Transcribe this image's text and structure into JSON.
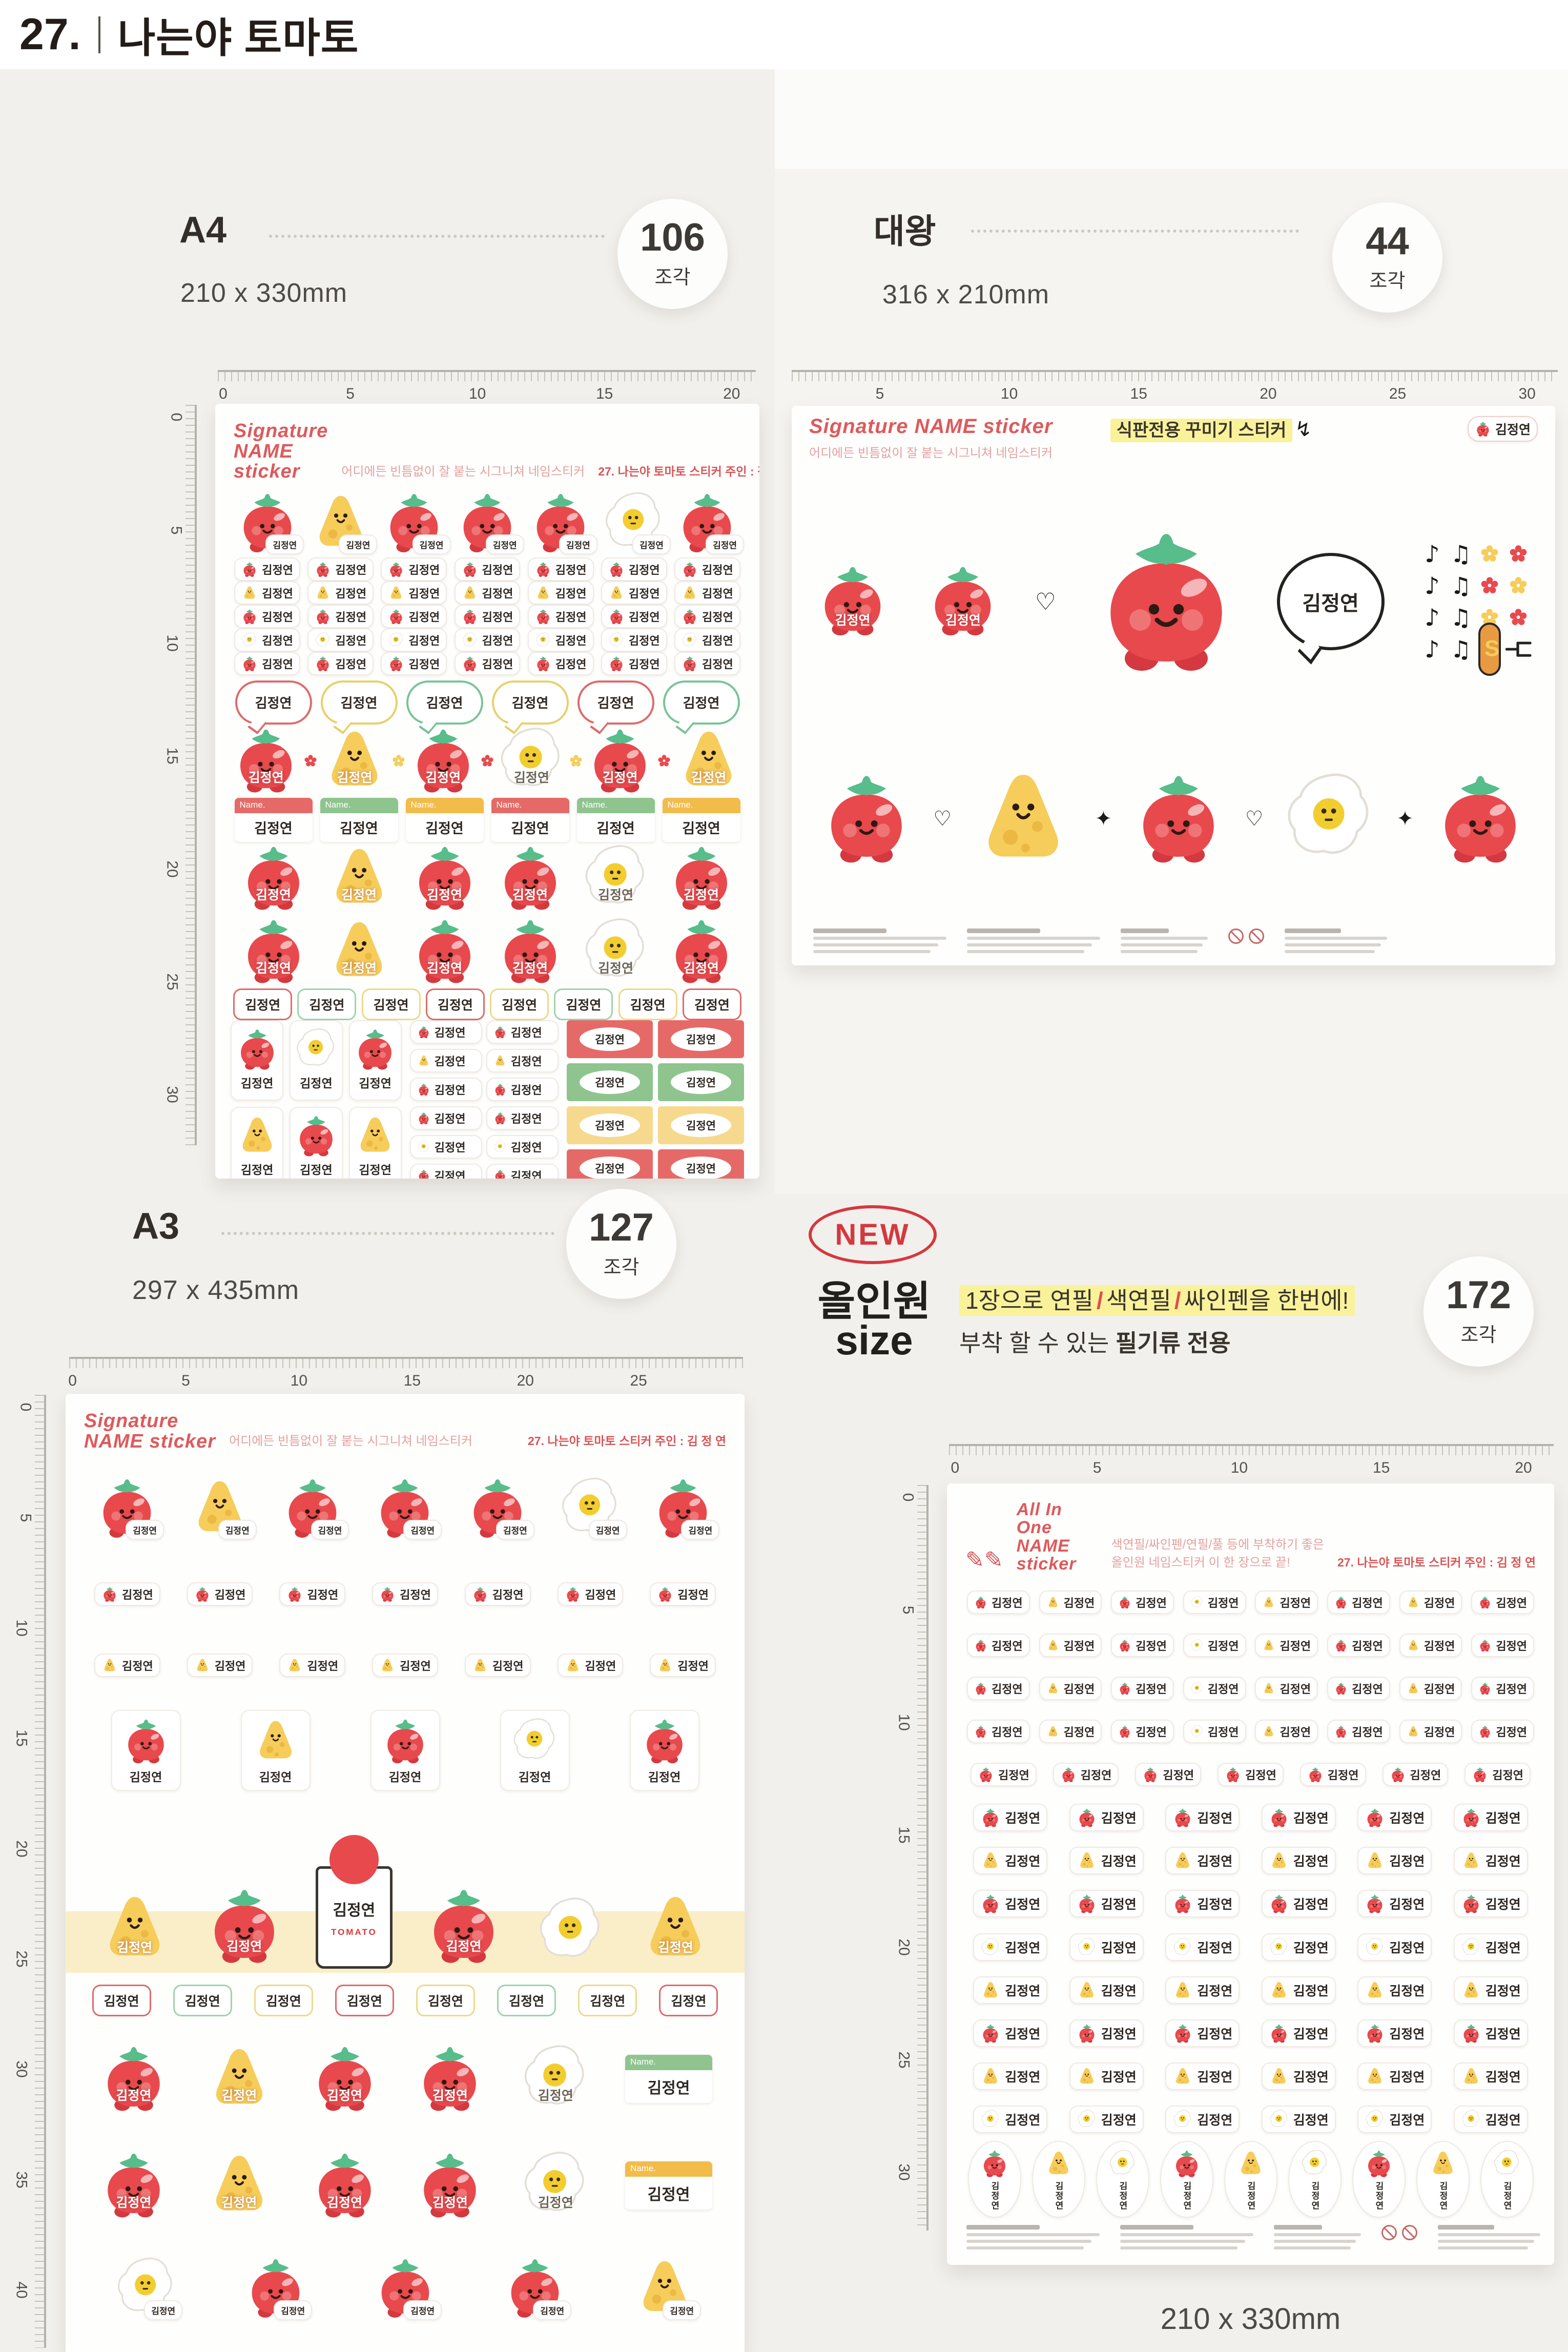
{
  "title": {
    "number": "27.",
    "text": "나는야 토마토"
  },
  "owner_name": "김정연",
  "badge_unit": "조각",
  "name_tag_label": "Name.",
  "sections": {
    "a4": {
      "size_label": "A4",
      "pieces": "106",
      "dimensions": "210 x 330mm"
    },
    "daewang": {
      "size_label": "대왕",
      "pieces": "44",
      "dimensions": "316 x 210mm"
    },
    "a3": {
      "size_label": "A3",
      "pieces": "127",
      "dimensions": "297 x 435mm"
    },
    "allinone": {
      "new_label": "NEW",
      "size_label_line1": "올인원",
      "size_label_line2": "size",
      "pieces": "172",
      "desc_highlight_parts": [
        "1장으로 연필",
        "색연필",
        "싸인펜을 한번에!"
      ],
      "desc_line2_prefix": "부착 할 수 있는 ",
      "desc_line2_bold": "필기류 전용",
      "dimensions_below": "210 x 330mm"
    }
  },
  "sheet_headers": {
    "signature": {
      "title_line1": "Signature",
      "title_line2": "NAME sticker",
      "subtitle": "어디에든 빈틈없이 잘 붙는 시그니쳐 네임스티커",
      "corner": "27. 나는야 토마토   스티커 주인 : 김 정 연"
    },
    "daewang_extra": {
      "highlight": "식판전용 꾸미기 스티커"
    },
    "allinone": {
      "title_line1": "All In One",
      "title_line2": "NAME sticker",
      "subtitle_line1": "색연필/싸인펜/연필/풀 등에 부착하기 좋은",
      "subtitle_line2": "올인원 네임스티커 이 한 장으로 끝!",
      "corner": "27. 나는야 토마토   스티커 주인 : 김 정 연"
    }
  },
  "rulers": {
    "a4_top": [
      "0",
      "5",
      "10",
      "15",
      "20"
    ],
    "a4_left": [
      "0",
      "5",
      "10",
      "15",
      "20",
      "25",
      "30"
    ],
    "daewang_top": [
      "5",
      "10",
      "15",
      "20",
      "25",
      "30"
    ],
    "a3_top": [
      "0",
      "5",
      "10",
      "15",
      "20",
      "25"
    ],
    "a3_left": [
      "0",
      "5",
      "10",
      "15",
      "20",
      "25",
      "30",
      "35",
      "40"
    ],
    "allinone_top": [
      "0",
      "5",
      "10",
      "15",
      "20"
    ],
    "allinone_left": [
      "0",
      "5",
      "10",
      "15",
      "20",
      "25",
      "30"
    ]
  },
  "colors": {
    "tomato_red": "#e8494d",
    "tomato_dark": "#d4393f",
    "leaf_green": "#56bd8b",
    "cheese_yellow": "#f6cd5a",
    "cheese_hole": "#ecb844",
    "egg_yolk": "#f2cd2f",
    "script_red": "#dd5a5c",
    "highlight_yellow": "#faf29a",
    "new_red": "#d5383e",
    "label_red": "#e56a67",
    "label_green": "#8fc48f",
    "label_yellow": "#f2bc4a",
    "page_bg": "#f2f0ec",
    "sheet_white": "#fefefd"
  },
  "sheets": {
    "a4_rows": [
      {
        "t": "sigheader"
      },
      {
        "t": "bigchars",
        "chars": [
          "tomato",
          "cheese",
          "tomato",
          "tomato",
          "tomato",
          "egg",
          "tomato"
        ]
      },
      {
        "t": "labels",
        "icons": [
          "tomato"
        ],
        "n": 7
      },
      {
        "t": "labels",
        "icons": [
          "cheese"
        ],
        "n": 7
      },
      {
        "t": "labels",
        "icons": [
          "tomato"
        ],
        "n": 7
      },
      {
        "t": "labels",
        "icons": [
          "egg"
        ],
        "n": 7
      },
      {
        "t": "labels",
        "icons": [
          "tomato"
        ],
        "n": 7
      },
      {
        "t": "bubbles",
        "colors": [
          "#dd6b6b",
          "#e8d06a",
          "#79c398",
          "#e8d06a",
          "#dd6b6b",
          "#79c398"
        ]
      },
      {
        "t": "namedchars",
        "chars": [
          "tomato",
          "cheese",
          "tomato",
          "egg",
          "tomato",
          "cheese"
        ],
        "flowers": true
      },
      {
        "t": "namebars",
        "colors": [
          "#e56a67",
          "#8fc48f",
          "#f2bc4a",
          "#e56a67",
          "#8fc48f",
          "#f2bc4a"
        ]
      },
      {
        "t": "namedchars",
        "chars": [
          "tomato",
          "cheese",
          "tomato",
          "tomato",
          "egg",
          "tomato"
        ]
      },
      {
        "t": "namedchars",
        "chars": [
          "tomato",
          "cheese",
          "tomato",
          "tomato",
          "egg",
          "tomato"
        ]
      },
      {
        "t": "outlinepills",
        "colors": [
          "#dd6b6b",
          "#9fd3ac",
          "#ecd98c",
          "#dd6b6b",
          "#ecd98c",
          "#9fd3ac",
          "#ecd98c",
          "#dd6b6b"
        ]
      },
      {
        "t": "a4bottom"
      }
    ],
    "daewang_rows": [
      {
        "t": "dwheader"
      },
      {
        "t": "dwmain"
      },
      {
        "t": "dwbottom",
        "chars": [
          "tomato",
          "cheese",
          "tomato",
          "egg",
          "tomato"
        ]
      },
      {
        "t": "fineprint"
      }
    ],
    "a3_rows": [
      {
        "t": "sigheader"
      },
      {
        "t": "bigchars",
        "chars": [
          "tomato",
          "cheese",
          "tomato",
          "tomato",
          "tomato",
          "egg",
          "tomato"
        ]
      },
      {
        "t": "labels",
        "icons": [
          "tomato"
        ],
        "n": 7
      },
      {
        "t": "labels",
        "icons": [
          "cheese"
        ],
        "n": 7
      },
      {
        "t": "cards",
        "chars": [
          "tomato",
          "cheese",
          "tomato",
          "egg",
          "tomato"
        ]
      },
      {
        "t": "a3band"
      },
      {
        "t": "outlinepills",
        "colors": [
          "#dd6b6b",
          "#9fd3ac",
          "#ecd98c",
          "#dd6b6b",
          "#ecd98c",
          "#9fd3ac",
          "#ecd98c",
          "#dd6b6b"
        ]
      },
      {
        "t": "namedbars",
        "chars": [
          "tomato",
          "cheese",
          "tomato",
          "tomato",
          "egg"
        ],
        "bar": "#8fc48f"
      },
      {
        "t": "namedbars",
        "chars": [
          "tomato",
          "cheese",
          "tomato",
          "tomato",
          "egg"
        ],
        "bar": "#f2bc4a"
      },
      {
        "t": "bigchars",
        "chars": [
          "egg",
          "tomato",
          "tomato",
          "tomato",
          "cheese"
        ]
      }
    ],
    "allinone_rows": [
      {
        "t": "aioheader"
      },
      {
        "t": "labels",
        "icons": [
          "tomato",
          "cheese",
          "tomato",
          "egg",
          "cheese",
          "tomato",
          "cheese",
          "tomato"
        ],
        "n": 8,
        "small": true
      },
      {
        "t": "labels",
        "icons": [
          "tomato",
          "cheese",
          "tomato",
          "egg",
          "cheese",
          "tomato",
          "cheese",
          "tomato"
        ],
        "n": 8,
        "small": true
      },
      {
        "t": "labels",
        "icons": [
          "tomato",
          "cheese",
          "tomato",
          "egg",
          "cheese",
          "tomato",
          "cheese",
          "tomato"
        ],
        "n": 8,
        "small": true
      },
      {
        "t": "labels",
        "icons": [
          "tomato",
          "cheese",
          "tomato",
          "egg",
          "cheese",
          "tomato",
          "cheese",
          "tomato"
        ],
        "n": 8,
        "small": true
      },
      {
        "t": "labels",
        "icons": [
          "tomato"
        ],
        "n": 7
      },
      {
        "t": "labels",
        "icons": [
          "tomato"
        ],
        "n": 6,
        "big": true
      },
      {
        "t": "labels",
        "icons": [
          "cheese"
        ],
        "n": 6,
        "big": true
      },
      {
        "t": "labels",
        "icons": [
          "tomato"
        ],
        "n": 6,
        "big": true
      },
      {
        "t": "labels",
        "icons": [
          "egg"
        ],
        "n": 6,
        "big": true
      },
      {
        "t": "labels",
        "icons": [
          "cheese"
        ],
        "n": 6,
        "big": true
      },
      {
        "t": "labels",
        "icons": [
          "tomato"
        ],
        "n": 6,
        "big": true
      },
      {
        "t": "labels",
        "icons": [
          "cheese"
        ],
        "n": 6,
        "big": true
      },
      {
        "t": "labels",
        "icons": [
          "egg"
        ],
        "n": 6,
        "big": true
      },
      {
        "t": "ovals",
        "icons": [
          "tomato",
          "cheese",
          "egg",
          "tomato",
          "cheese",
          "egg",
          "tomato",
          "cheese",
          "egg"
        ]
      },
      {
        "t": "fineprint"
      }
    ]
  }
}
